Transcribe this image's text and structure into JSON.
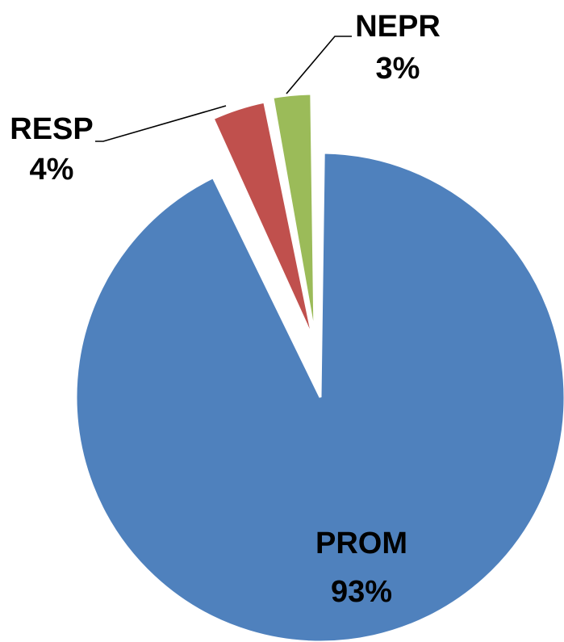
{
  "chart_data": {
    "type": "pie",
    "title": "",
    "slices": [
      {
        "label": "PROM",
        "value": 93,
        "display": "93%",
        "color": "#4F81BD"
      },
      {
        "label": "RESP",
        "value": 4,
        "display": "4%",
        "color": "#C0504D"
      },
      {
        "label": "NEPR",
        "value": 3,
        "display": "3%",
        "color": "#9BBB59"
      }
    ],
    "exploded": true,
    "legend": "none"
  }
}
